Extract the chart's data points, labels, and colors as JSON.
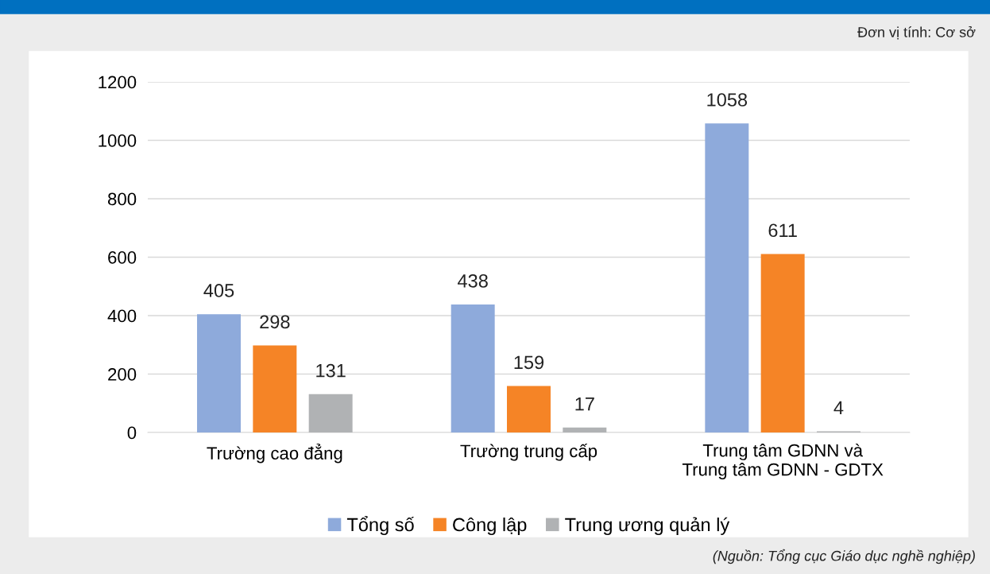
{
  "chart_data": {
    "type": "bar",
    "categories": [
      "Trường cao đẳng",
      "Trường trung cấp",
      "Trung tâm GDNN và\nTrung tâm GDNN - GDTX"
    ],
    "series": [
      {
        "name": "Tổng số",
        "color": "#8eaadb",
        "values": [
          405,
          438,
          1058
        ]
      },
      {
        "name": "Công lập",
        "color": "#f58426",
        "values": [
          298,
          159,
          611
        ]
      },
      {
        "name": "Trung ương quản lý",
        "color": "#b0b2b4",
        "values": [
          131,
          17,
          4
        ]
      }
    ],
    "ylim": [
      0,
      1200
    ],
    "yticks": [
      0,
      200,
      400,
      600,
      800,
      1000,
      1200
    ],
    "grid": "y",
    "legend": "bottom",
    "data_labels": true,
    "annotations": [
      "Đơn vị tính: Cơ sở",
      "(Nguồn: Tổng cục Giáo dục nghề nghiệp)"
    ]
  }
}
